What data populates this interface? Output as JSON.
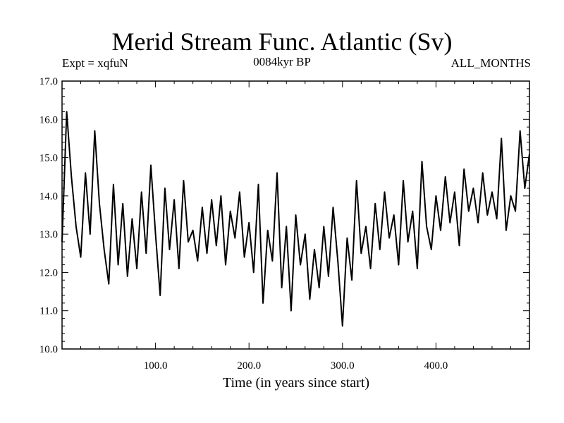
{
  "header": {
    "title": "Merid Stream Func. Atlantic (Sv)",
    "left": "Expt = xqfuN",
    "center": "0084kyr BP",
    "right": "ALL_MONTHS"
  },
  "chart_data": {
    "type": "line",
    "title": "Merid Stream Func. Atlantic (Sv)",
    "xlabel": "Time (in years since start)",
    "ylabel": "",
    "xlim": [
      0,
      500
    ],
    "ylim": [
      10.0,
      17.0
    ],
    "xticks": [
      100,
      200,
      300,
      400
    ],
    "xtick_labels": [
      "100.0",
      "200.0",
      "300.0",
      "400.0"
    ],
    "yticks": [
      10,
      11,
      12,
      13,
      14,
      15,
      16,
      17
    ],
    "ytick_labels": [
      "10.0",
      "11.0",
      "12.0",
      "13.0",
      "14.0",
      "15.0",
      "16.0",
      "17.0"
    ],
    "grid": false,
    "series": [
      {
        "name": "xqfuN",
        "x": [
          0,
          5,
          10,
          15,
          20,
          25,
          30,
          35,
          40,
          45,
          50,
          55,
          60,
          65,
          70,
          75,
          80,
          85,
          90,
          95,
          100,
          105,
          110,
          115,
          120,
          125,
          130,
          135,
          140,
          145,
          150,
          155,
          160,
          165,
          170,
          175,
          180,
          185,
          190,
          195,
          200,
          205,
          210,
          215,
          220,
          225,
          230,
          235,
          240,
          245,
          250,
          255,
          260,
          265,
          270,
          275,
          280,
          285,
          290,
          295,
          300,
          305,
          310,
          315,
          320,
          325,
          330,
          335,
          340,
          345,
          350,
          355,
          360,
          365,
          370,
          375,
          380,
          385,
          390,
          395,
          400,
          405,
          410,
          415,
          420,
          425,
          430,
          435,
          440,
          445,
          450,
          455,
          460,
          465,
          470,
          475,
          480,
          485,
          490,
          495,
          500
        ],
        "values": [
          12.8,
          16.2,
          14.5,
          13.2,
          12.4,
          14.6,
          13.0,
          15.7,
          13.8,
          12.6,
          11.7,
          14.3,
          12.2,
          13.8,
          11.9,
          13.4,
          12.1,
          14.1,
          12.5,
          14.8,
          13.0,
          11.4,
          14.2,
          12.6,
          13.9,
          12.1,
          14.4,
          12.8,
          13.1,
          12.3,
          13.7,
          12.5,
          13.9,
          12.7,
          14.0,
          12.2,
          13.6,
          12.9,
          14.1,
          12.4,
          13.3,
          12.0,
          14.3,
          11.2,
          13.1,
          12.3,
          14.6,
          11.6,
          13.2,
          11.0,
          13.5,
          12.2,
          13.0,
          11.3,
          12.6,
          11.6,
          13.2,
          11.9,
          13.7,
          12.3,
          10.6,
          12.9,
          11.8,
          14.4,
          12.5,
          13.2,
          12.1,
          13.8,
          12.6,
          14.1,
          12.9,
          13.5,
          12.2,
          14.4,
          12.8,
          13.6,
          12.1,
          14.9,
          13.2,
          12.6,
          14.0,
          13.1,
          14.5,
          13.3,
          14.1,
          12.7,
          14.7,
          13.6,
          14.2,
          13.3,
          14.6,
          13.5,
          14.1,
          13.4,
          15.5,
          13.1,
          14.0,
          13.6,
          15.7,
          14.2,
          15.1
        ]
      }
    ]
  }
}
